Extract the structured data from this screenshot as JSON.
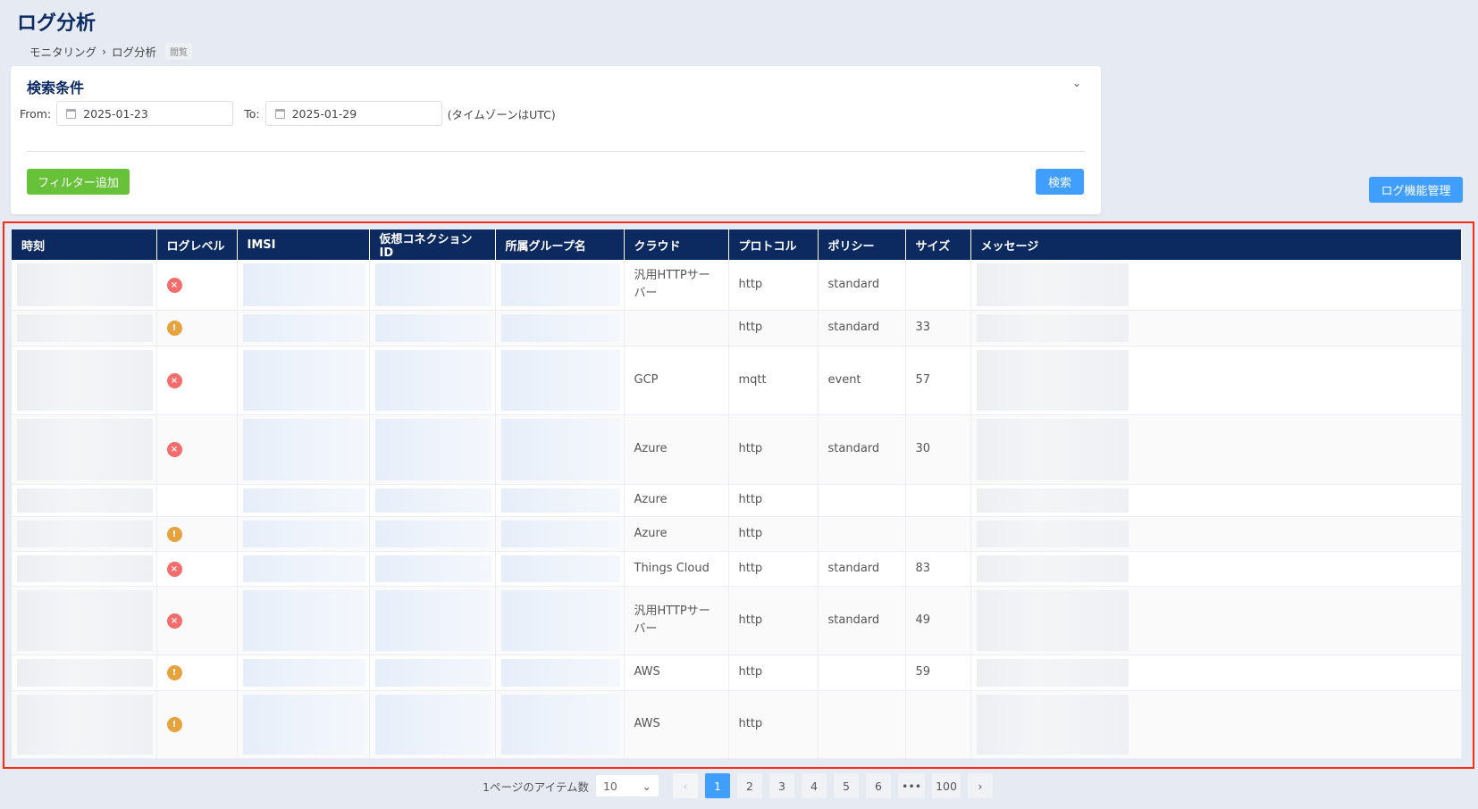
{
  "header": {
    "title": "ログ分析",
    "breadcrumb": [
      "モニタリング",
      "ログ分析"
    ],
    "separator": "›",
    "mode_tag": "閲覧"
  },
  "search": {
    "title": "検索条件",
    "from_label": "From:",
    "from_value": "2025-01-23",
    "to_label": "To:",
    "to_value": "2025-01-29",
    "tz_note": "(タイムゾーンはUTC)",
    "add_filter_label": "フィルター追加",
    "search_label": "検索"
  },
  "log_settings_label": "ログ機能管理",
  "colors": {
    "accent": "#409eff",
    "header_bg": "#0c2a5f",
    "success": "#67c23a",
    "error": "#f56c6c",
    "warning": "#e6a23c",
    "highlight": "#ff2a10"
  },
  "table": {
    "columns": [
      "時刻",
      "ログレベル",
      "IMSI",
      "仮想コネクションID",
      "所属グループ名",
      "クラウド",
      "プロトコル",
      "ポリシー",
      "サイズ",
      "メッセージ"
    ],
    "rows": [
      {
        "level": "error",
        "cloud": "汎用HTTPサーバー",
        "protocol": "http",
        "policy": "standard",
        "size": ""
      },
      {
        "level": "warning",
        "cloud": "",
        "protocol": "http",
        "policy": "standard",
        "size": "33"
      },
      {
        "level": "error",
        "cloud": "GCP",
        "protocol": "mqtt",
        "policy": "event",
        "size": "57"
      },
      {
        "level": "error",
        "cloud": "Azure",
        "protocol": "http",
        "policy": "standard",
        "size": "30"
      },
      {
        "level": "",
        "cloud": "Azure",
        "protocol": "http",
        "policy": "",
        "size": ""
      },
      {
        "level": "warning",
        "cloud": "Azure",
        "protocol": "http",
        "policy": "",
        "size": ""
      },
      {
        "level": "error",
        "cloud": "Things Cloud",
        "protocol": "http",
        "policy": "standard",
        "size": "83"
      },
      {
        "level": "error",
        "cloud": "汎用HTTPサーバー",
        "protocol": "http",
        "policy": "standard",
        "size": "49"
      },
      {
        "level": "warning",
        "cloud": "AWS",
        "protocol": "http",
        "policy": "",
        "size": "59"
      },
      {
        "level": "warning",
        "cloud": "AWS",
        "protocol": "http",
        "policy": "",
        "size": ""
      }
    ]
  },
  "pagination": {
    "items_per_page_label": "1ページのアイテム数",
    "page_size": "10",
    "pages": [
      "1",
      "2",
      "3",
      "4",
      "5",
      "6",
      "•••",
      "100"
    ],
    "current": "1",
    "prev": "‹",
    "next": "›"
  }
}
